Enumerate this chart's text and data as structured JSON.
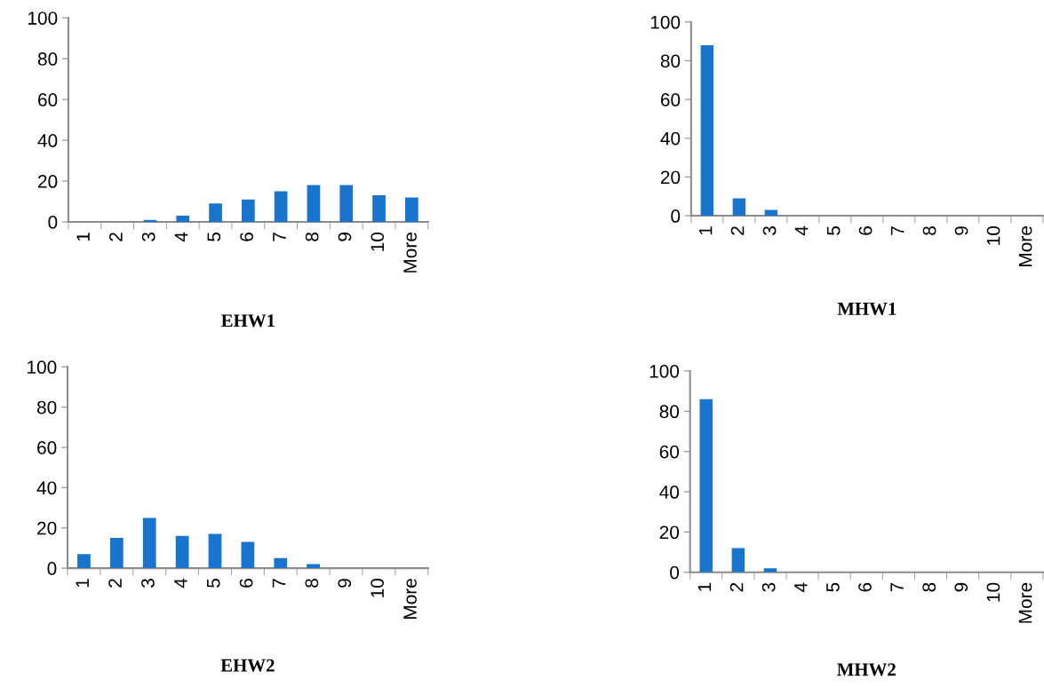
{
  "chart_data": [
    {
      "type": "bar",
      "title": "EHW1",
      "categories": [
        "1",
        "2",
        "3",
        "4",
        "5",
        "6",
        "7",
        "8",
        "9",
        "10",
        "More"
      ],
      "values": [
        0,
        0,
        1,
        3,
        9,
        11,
        15,
        18,
        18,
        13,
        12
      ],
      "color": "#1874cd",
      "ylim": [
        0,
        100
      ],
      "yticks": [
        0,
        20,
        40,
        60,
        80,
        100
      ],
      "grid": false
    },
    {
      "type": "bar",
      "title": "MHW1",
      "categories": [
        "1",
        "2",
        "3",
        "4",
        "5",
        "6",
        "7",
        "8",
        "9",
        "10",
        "More"
      ],
      "values": [
        88,
        9,
        3,
        0,
        0,
        0,
        0,
        0,
        0,
        0,
        0
      ],
      "color": "#1874cd",
      "ylim": [
        0,
        100
      ],
      "yticks": [
        0,
        20,
        40,
        60,
        80,
        100
      ],
      "grid": false
    },
    {
      "type": "bar",
      "title": "EHW2",
      "categories": [
        "1",
        "2",
        "3",
        "4",
        "5",
        "6",
        "7",
        "8",
        "9",
        "10",
        "More"
      ],
      "values": [
        7,
        15,
        25,
        16,
        17,
        13,
        5,
        2,
        0,
        0,
        0
      ],
      "color": "#1874cd",
      "ylim": [
        0,
        100
      ],
      "yticks": [
        0,
        20,
        40,
        60,
        80,
        100
      ],
      "grid": false
    },
    {
      "type": "bar",
      "title": "MHW2",
      "categories": [
        "1",
        "2",
        "3",
        "4",
        "5",
        "6",
        "7",
        "8",
        "9",
        "10",
        "More"
      ],
      "values": [
        86,
        12,
        2,
        0,
        0,
        0,
        0,
        0,
        0,
        0,
        0
      ],
      "color": "#1874cd",
      "ylim": [
        0,
        100
      ],
      "yticks": [
        0,
        20,
        40,
        60,
        80,
        100
      ],
      "grid": false
    }
  ]
}
